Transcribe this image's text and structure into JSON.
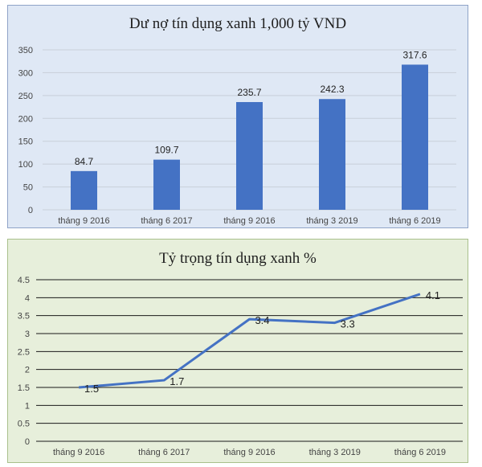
{
  "chart_data": [
    {
      "type": "bar",
      "title": "Dư nợ tín dụng xanh 1,000 tỷ VND",
      "categories": [
        "tháng 9 2016",
        "tháng 6 2017",
        "tháng 9 2016",
        "tháng 3 2019",
        "tháng 6 2019"
      ],
      "values": [
        84.7,
        109.7,
        235.7,
        242.3,
        317.6
      ],
      "value_labels": [
        "84.7",
        "109.7",
        "235.7",
        "242.3",
        "317.6"
      ],
      "ylim": [
        0,
        350
      ],
      "yticks": [
        "0",
        "50",
        "100",
        "150",
        "200",
        "250",
        "300",
        "350"
      ],
      "grid": true,
      "bar_color": "#4472c4",
      "background": "#dfe8f5"
    },
    {
      "type": "line",
      "title": "Tỷ trọng tín dụng xanh %",
      "categories": [
        "tháng 9 2016",
        "tháng 6 2017",
        "tháng 9 2016",
        "tháng 3 2019",
        "tháng 6 2019"
      ],
      "values": [
        1.5,
        1.7,
        3.4,
        3.3,
        4.1
      ],
      "value_labels": [
        "1.5",
        "1.7",
        "3.4",
        "3.3",
        "4.1"
      ],
      "ylim": [
        0,
        4.5
      ],
      "yticks": [
        "0",
        "0.5",
        "1",
        "1.5",
        "2",
        "2.5",
        "3",
        "3.5",
        "4",
        "4.5"
      ],
      "grid": true,
      "line_color": "#4472c4",
      "background": "#e7efdb"
    }
  ]
}
